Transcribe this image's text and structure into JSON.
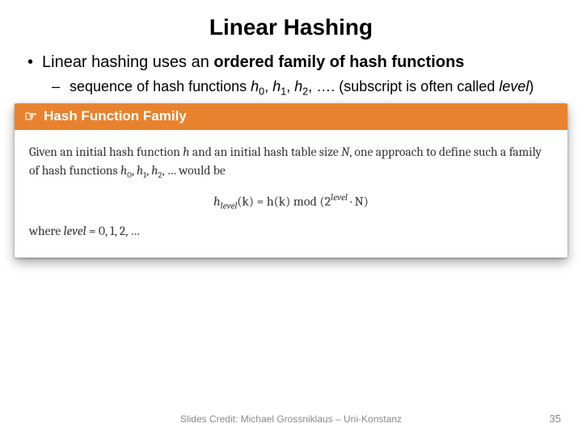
{
  "title": "Linear Hashing",
  "bullet": {
    "lead": "Linear hashing uses an ",
    "bold": "ordered family of hash functions"
  },
  "subbullet": {
    "pre": "sequence of hash functions ",
    "h": "h",
    "s0": "0",
    "s1": "1",
    "s2": "2",
    "tail": ", …. (subscript is often called ",
    "level": "level",
    "close": ")"
  },
  "callout": {
    "header": "Hash Function Family",
    "intro_pre": "Given an initial hash function ",
    "intro_h": "h",
    "intro_mid": " and an initial hash table size ",
    "intro_N": "N",
    "intro_post1": ", one approach to define such a family of hash functions ",
    "intro_list": "h",
    "intro_s0": "0",
    "intro_s1": "1",
    "intro_s2": "2",
    "intro_tail": ", … would be",
    "formula": {
      "lhs_h": "h",
      "lhs_sub": "level",
      "lhs_arg": "(k) = h(k) mod (2",
      "exp": "level",
      "rhs": " · N)",
      "dot": ""
    },
    "where_pre": "where ",
    "where_level": "level",
    "where_post": " = 0, 1, 2, …"
  },
  "footer": "Slides Credit: Michael Grossniklaus – Uni-Konstanz",
  "pagenum": "35",
  "colors": {
    "accent": "#e9822e",
    "text": "#000000",
    "muted": "#8a8a8a",
    "bg": "#ffffff"
  }
}
